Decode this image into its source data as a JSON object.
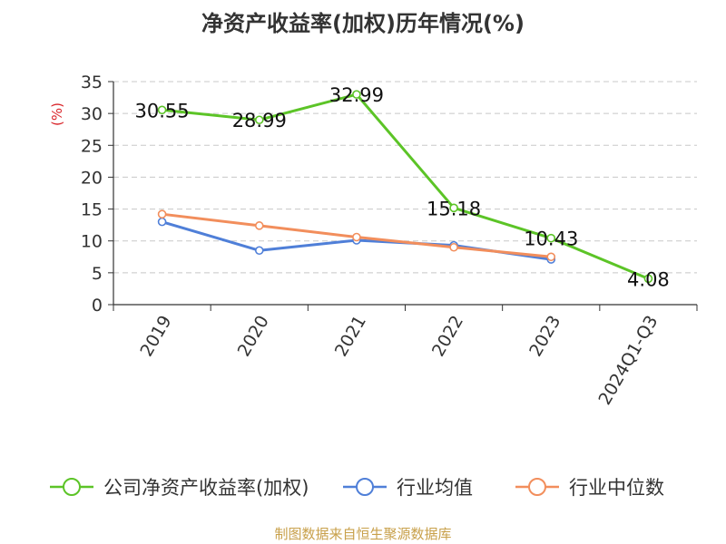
{
  "chart_data": {
    "type": "line",
    "title": "净资产收益率(加权)历年情况(%)",
    "ylabel": "(%)",
    "categories": [
      "2019",
      "2020",
      "2021",
      "2022",
      "2023",
      "2024Q1-Q3"
    ],
    "ylim": [
      0,
      35
    ],
    "yticks": [
      0,
      5,
      10,
      15,
      20,
      25,
      30,
      35
    ],
    "grid": true,
    "legend_position": "bottom",
    "series": [
      {
        "name": "公司净资产收益率(加权)",
        "color": "#5cc427",
        "values": [
          30.55,
          28.99,
          32.99,
          15.18,
          10.43,
          4.08
        ],
        "labels": [
          "30.55",
          "28.99",
          "32.99",
          "15.18",
          "10.43",
          "4.08"
        ]
      },
      {
        "name": "行业均值",
        "color": "#4f7fd8",
        "values": [
          13.0,
          8.5,
          10.1,
          9.3,
          7.1,
          null
        ]
      },
      {
        "name": "行业中位数",
        "color": "#f28e5c",
        "values": [
          14.2,
          12.4,
          10.6,
          9.0,
          7.5,
          null
        ]
      }
    ],
    "source": "制图数据来自恒生聚源数据库"
  }
}
